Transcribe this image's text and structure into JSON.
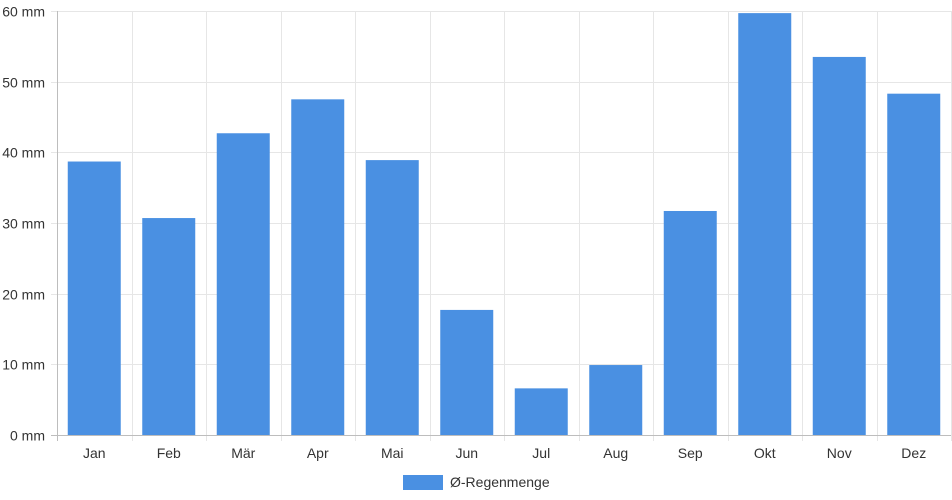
{
  "chart_data": {
    "type": "bar",
    "categories": [
      "Jan",
      "Feb",
      "Mär",
      "Apr",
      "Mai",
      "Jun",
      "Jul",
      "Aug",
      "Sep",
      "Okt",
      "Nov",
      "Dez"
    ],
    "series": [
      {
        "name": "Ø-Regenmenge",
        "values": [
          38.7,
          30.7,
          42.7,
          47.5,
          38.9,
          17.7,
          6.6,
          9.9,
          31.7,
          59.7,
          53.5,
          48.3
        ],
        "color": "#4a90e2"
      }
    ],
    "y_ticks": [
      "0 mm",
      "10 mm",
      "20 mm",
      "30 mm",
      "40 mm",
      "50 mm",
      "60 mm"
    ],
    "ylim": [
      0,
      60
    ],
    "grid": true,
    "legend_position": "bottom-center"
  }
}
